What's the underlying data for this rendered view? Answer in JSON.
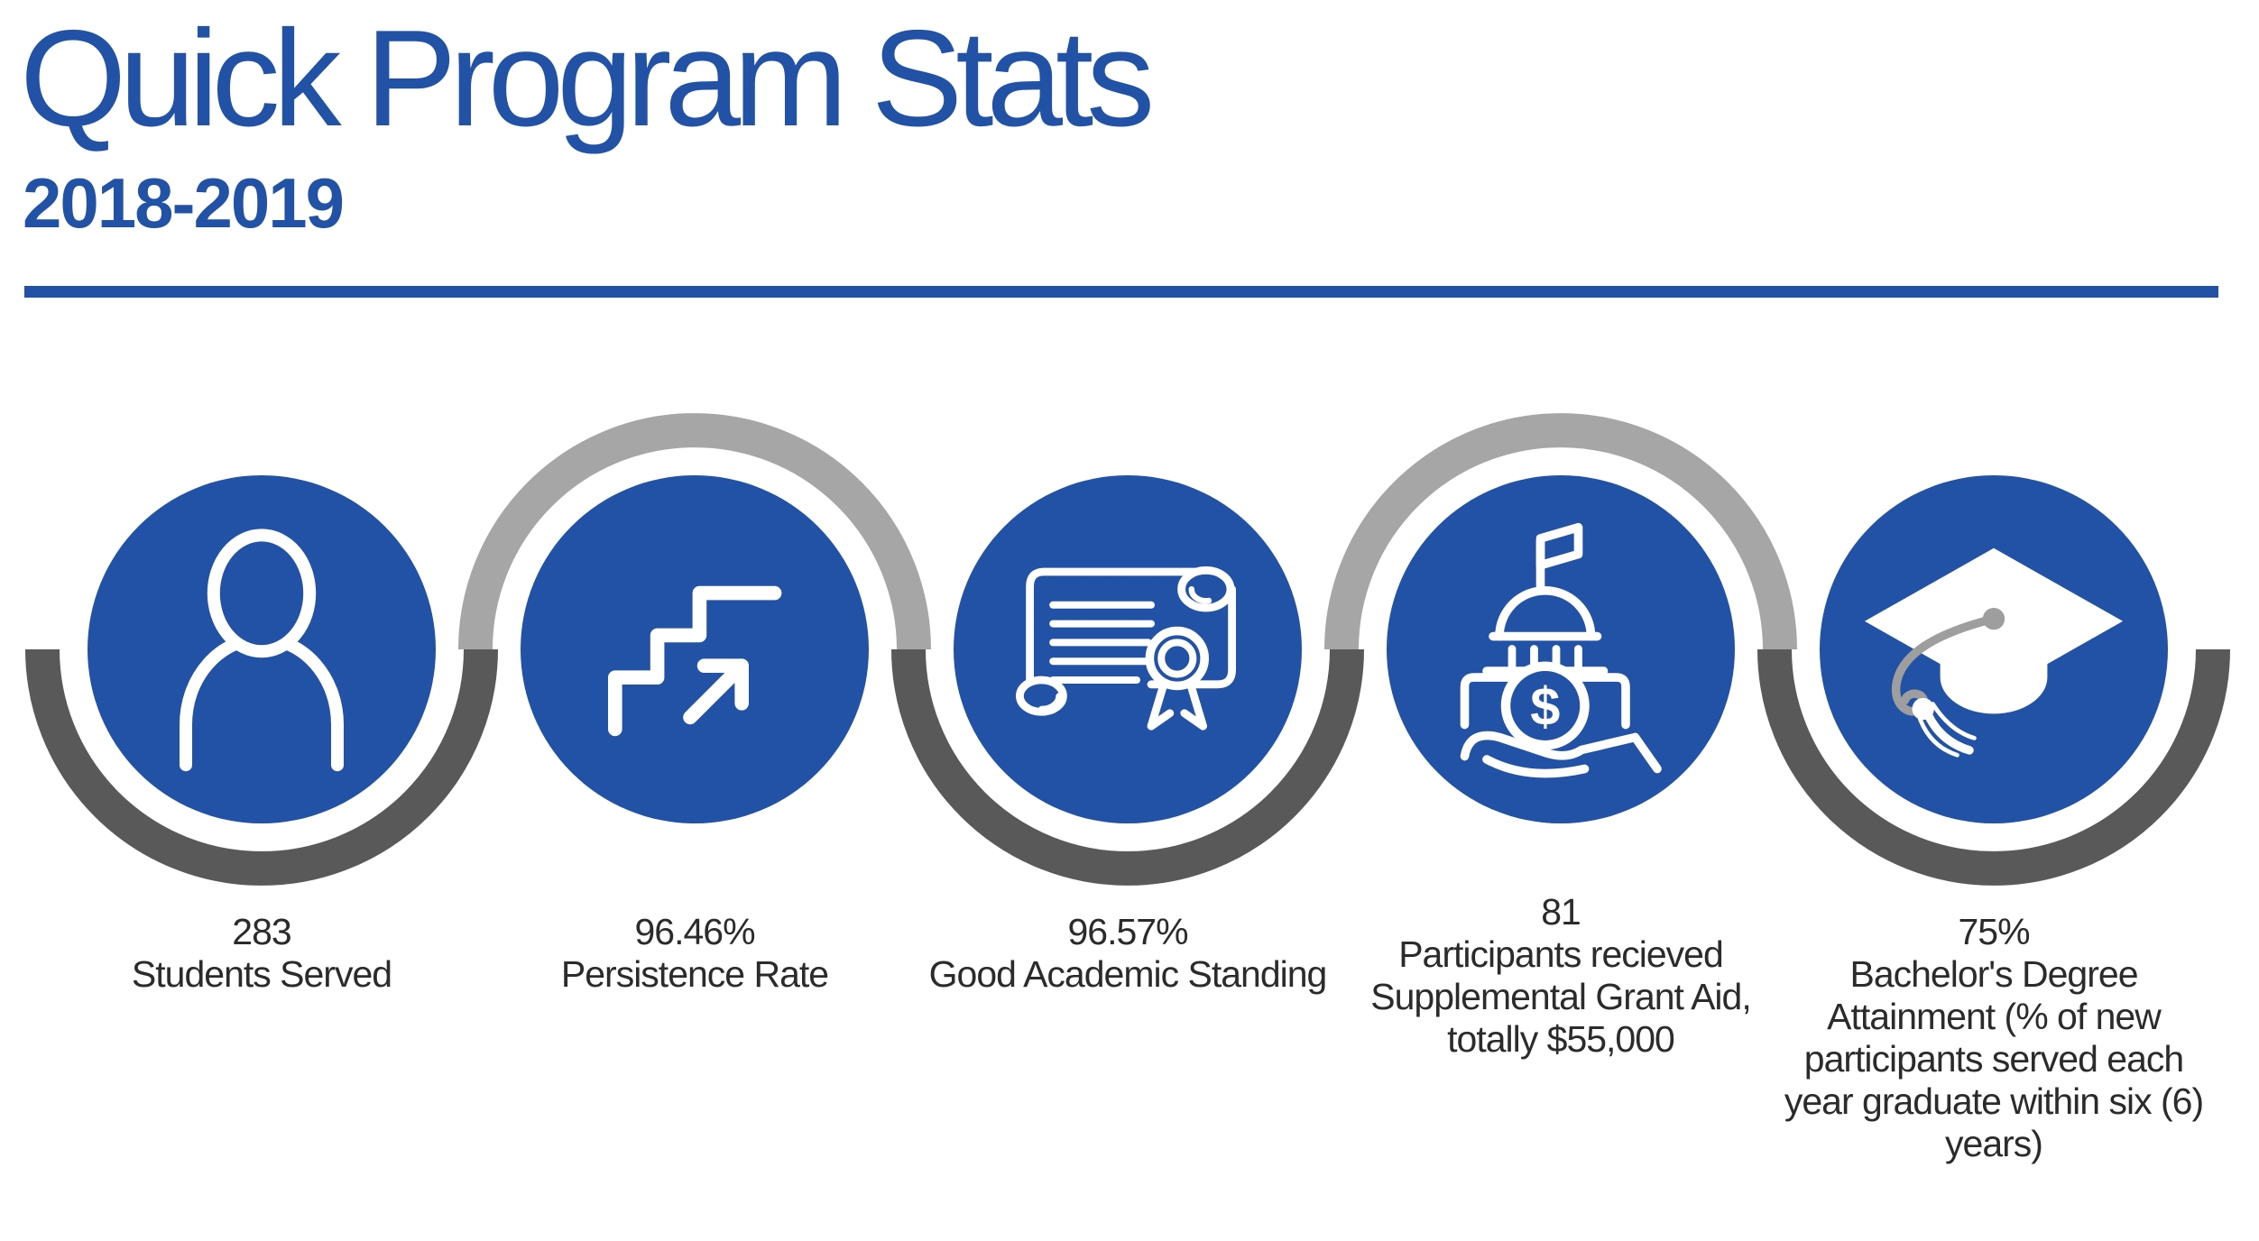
{
  "header": {
    "title": "Quick Program Stats",
    "subtitle": "2018-2019"
  },
  "colors": {
    "brand_blue": "#2152a6",
    "arc_dark": "#595959",
    "arc_light": "#a6a6a6",
    "tassel_gray": "#9e9e9e",
    "caption_text": "#2b2b2b"
  },
  "stats": [
    {
      "icon": "person-icon",
      "value": "283",
      "label_lines": [
        "Students Served"
      ]
    },
    {
      "icon": "stairs-up-icon",
      "value": "96.46%",
      "label_lines": [
        "Persistence Rate"
      ]
    },
    {
      "icon": "certificate-icon",
      "value": "96.57%",
      "label_lines": [
        "Good Academic Standing"
      ]
    },
    {
      "icon": "grant-building-icon",
      "value": "81",
      "label_lines": [
        "Participants recieved",
        "Supplemental Grant Aid,",
        "totally $55,000"
      ]
    },
    {
      "icon": "graduation-cap-icon",
      "value": "75%",
      "label_lines": [
        "Bachelor's Degree",
        "Attainment (% of new",
        "participants served each",
        "year graduate within six (6)",
        "years)"
      ]
    }
  ]
}
